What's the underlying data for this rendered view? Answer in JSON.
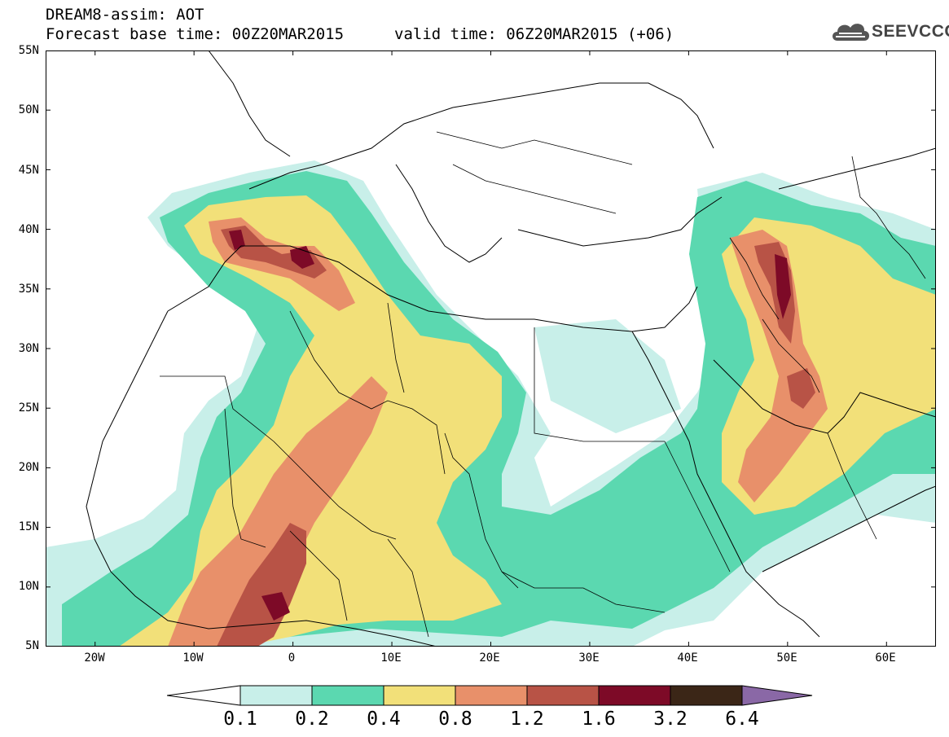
{
  "header": {
    "line1": "DREAM8-assim: AOT",
    "line2": "Forecast base time: 00Z20MAR2015",
    "line3": "valid time: 06Z20MAR2015 (+06)"
  },
  "logo": {
    "text": "SEEVCCC",
    "icon": "cloud-icon"
  },
  "map": {
    "lat_labels": [
      "55N",
      "50N",
      "45N",
      "40N",
      "35N",
      "30N",
      "25N",
      "20N",
      "15N",
      "10N",
      "5N"
    ],
    "lon_labels": [
      "20W",
      "10W",
      "0",
      "10E",
      "20E",
      "30E",
      "40E",
      "50E",
      "60E"
    ],
    "lon_range": [
      -25,
      65
    ],
    "lat_range": [
      5,
      55
    ],
    "variable": "AOT"
  },
  "legend": {
    "thresholds": [
      "0.1",
      "0.2",
      "0.4",
      "0.8",
      "1.2",
      "1.6",
      "3.2",
      "6.4"
    ],
    "colors": {
      "below": "#ffffff",
      "c1": "#c8efe9",
      "c2": "#5bd8b0",
      "c3": "#f2e079",
      "c4": "#e8906a",
      "c5": "#b85346",
      "c6": "#7d0a27",
      "c7": "#3b2617",
      "above": "#8a68a6"
    }
  }
}
